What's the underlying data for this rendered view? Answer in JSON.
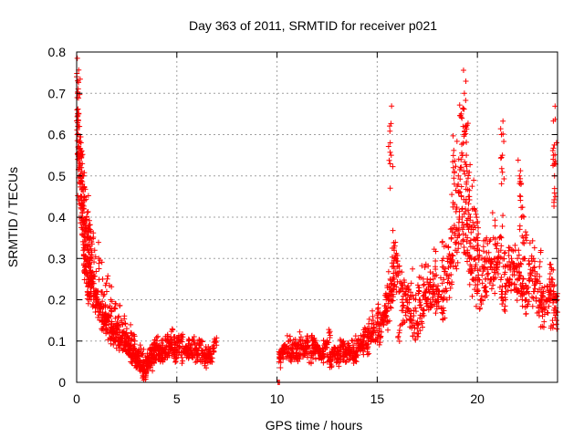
{
  "chart_data": {
    "type": "scatter",
    "title": "Day 363 of 2011, SRMTID for receiver p021",
    "xlabel": "GPS time / hours",
    "ylabel": "SRMTID / TECUs",
    "xlim": [
      0,
      24
    ],
    "ylim": [
      0,
      0.8
    ],
    "xticks": [
      0,
      5,
      10,
      15,
      20
    ],
    "xtick_labels": [
      "0",
      "5",
      "10",
      "15",
      "20"
    ],
    "yticks": [
      0,
      0.1,
      0.2,
      0.3,
      0.4,
      0.5,
      0.6,
      0.7,
      0.8
    ],
    "ytick_labels": [
      "0",
      "0.1",
      "0.2",
      "0.3",
      "0.4",
      "0.5",
      "0.6",
      "0.7",
      "0.8"
    ],
    "grid": true,
    "marker": "plus",
    "color": "#ff0000",
    "series": [
      {
        "name": "SRMTID",
        "x": [
          0.0,
          0.05,
          0.1,
          0.15,
          0.2,
          0.25,
          0.3,
          0.35,
          0.4,
          0.45,
          0.5,
          0.55,
          0.6,
          0.65,
          0.7,
          0.75,
          0.8,
          0.9,
          1.0,
          1.1,
          1.2,
          1.3,
          1.4,
          1.5,
          1.6,
          1.7,
          1.8,
          1.9,
          2.0,
          2.1,
          2.2,
          2.3,
          2.4,
          2.5,
          2.6,
          2.7,
          2.8,
          2.9,
          3.0,
          3.1,
          3.2,
          3.3,
          3.4,
          3.5,
          3.6,
          3.7,
          3.8,
          3.9,
          4.0,
          4.1,
          4.2,
          4.3,
          4.4,
          4.5,
          4.6,
          4.7,
          4.8,
          4.9,
          5.0,
          5.2,
          5.4,
          5.6,
          5.8,
          6.0,
          6.2,
          6.4,
          6.6,
          6.8,
          6.9,
          10.1,
          10.3,
          10.5,
          10.7,
          10.9,
          11.1,
          11.3,
          11.5,
          11.7,
          11.9,
          12.1,
          12.3,
          12.5,
          12.7,
          12.9,
          13.1,
          13.3,
          13.5,
          13.7,
          13.9,
          14.1,
          14.3,
          14.5,
          14.7,
          14.9,
          15.1,
          15.3,
          15.5,
          15.6,
          15.7,
          15.8,
          15.9,
          16.0,
          16.2,
          16.4,
          16.6,
          16.8,
          17.0,
          17.2,
          17.4,
          17.6,
          17.8,
          18.0,
          18.2,
          18.4,
          18.6,
          18.8,
          19.0,
          19.1,
          19.2,
          19.3,
          19.4,
          19.5,
          19.6,
          19.7,
          19.8,
          19.9,
          20.0,
          20.2,
          20.4,
          20.6,
          20.8,
          21.0,
          21.2,
          21.4,
          21.6,
          21.8,
          22.0,
          22.2,
          22.4,
          22.6,
          22.8,
          23.0,
          23.2,
          23.4,
          23.6,
          23.8,
          23.9,
          0.05,
          0.1,
          0.2,
          0.3,
          0.4,
          0.5,
          0.6,
          0.7,
          0.9,
          1.1,
          1.3,
          1.5,
          1.7,
          1.9,
          2.1,
          2.3,
          2.5,
          2.7,
          2.9,
          3.1,
          3.3,
          3.5,
          3.7,
          3.9,
          4.1,
          4.3,
          4.5,
          4.7,
          4.9,
          5.1,
          5.3,
          5.5,
          5.7,
          5.9,
          6.1,
          6.3,
          6.5,
          6.7,
          10.2,
          10.4,
          10.6,
          10.8,
          11.0,
          11.2,
          11.4,
          11.6,
          11.8,
          12.0,
          12.2,
          12.4,
          12.6,
          12.8,
          13.0,
          13.2,
          13.4,
          13.6,
          13.8,
          14.0,
          14.2,
          14.4,
          14.6,
          14.8,
          15.0,
          15.2,
          15.4,
          15.7,
          16.1,
          16.3,
          16.5,
          16.7,
          16.9,
          17.1,
          17.3,
          17.5,
          17.7,
          17.9,
          18.1,
          18.3,
          18.5,
          18.7,
          18.9,
          19.05,
          19.15,
          19.25,
          19.35,
          19.45,
          19.55,
          19.65,
          19.75,
          19.85,
          19.95,
          20.1,
          20.3,
          20.5,
          20.7,
          20.9,
          21.1,
          21.3,
          21.5,
          21.7,
          21.9,
          22.1,
          22.3,
          22.5,
          22.7,
          22.9,
          23.1,
          23.3,
          23.5,
          23.7,
          23.85,
          23.95,
          0.02,
          0.08,
          0.12,
          0.18,
          0.22,
          0.28,
          0.33,
          0.38,
          0.42,
          0.48,
          0.52,
          0.58,
          0.62,
          0.68,
          0.72,
          0.85,
          0.95,
          1.05,
          1.15,
          1.25,
          1.35,
          1.45,
          1.55,
          1.65,
          1.75,
          1.85,
          1.95,
          2.05,
          2.15,
          2.25,
          2.35,
          2.45,
          2.55,
          2.65,
          2.75,
          2.85,
          2.95,
          3.05,
          3.15,
          3.25,
          3.35,
          3.45,
          3.55,
          3.65,
          3.75,
          3.85,
          3.95,
          4.05,
          4.25,
          4.45,
          4.65,
          4.85,
          5.05,
          5.25,
          5.45,
          5.65,
          5.85,
          6.05,
          6.25,
          6.45,
          6.65,
          6.85,
          10.15,
          10.35,
          10.55,
          10.75,
          10.95,
          11.15,
          11.35,
          11.55,
          11.75,
          11.95,
          12.15,
          12.35,
          12.55,
          12.75,
          12.95,
          13.15,
          13.35,
          13.55,
          13.75,
          13.95,
          14.15,
          14.35,
          14.55,
          14.75,
          14.95,
          15.15,
          15.35,
          15.45,
          15.55,
          15.65,
          15.75,
          15.85,
          15.95,
          16.05,
          16.25,
          16.45,
          16.65,
          16.85,
          17.05,
          17.25,
          17.45,
          17.65,
          17.85,
          18.05,
          18.25,
          18.45,
          18.65,
          18.85,
          18.95,
          19.1,
          19.3,
          19.5,
          19.7,
          19.9,
          20.05,
          20.25,
          20.45,
          20.65,
          20.85,
          21.05,
          21.25,
          21.45,
          21.65,
          21.85,
          22.05,
          22.25,
          22.45,
          22.65,
          22.85,
          23.05,
          23.25,
          23.45,
          23.65,
          23.75,
          23.9,
          23.98,
          0.03,
          0.13,
          0.23,
          0.43,
          0.63,
          1.0,
          1.4,
          1.8,
          2.2,
          2.6,
          3.0,
          3.4,
          3.8,
          4.2,
          4.6,
          5.0,
          5.5,
          6.0,
          6.5,
          10.25,
          10.65,
          11.05,
          11.45,
          11.85,
          12.25,
          12.65,
          13.05,
          13.45,
          13.85,
          14.25,
          14.65,
          15.05,
          15.45,
          15.85,
          16.3,
          16.7,
          17.1,
          17.5,
          17.9,
          18.3,
          18.7,
          19.2,
          19.6,
          20.0,
          20.4,
          20.8,
          21.2,
          21.6,
          22.0,
          22.4,
          22.8,
          23.2,
          23.6,
          0.07,
          0.17,
          0.27,
          0.37,
          0.47,
          0.57,
          0.67,
          0.77,
          10.05,
          10.1,
          10.12,
          21.2,
          21.25,
          22.1,
          22.15,
          22.2,
          22.3,
          19.35,
          19.4,
          19.45,
          15.65,
          15.7,
          18.8,
          18.85,
          23.8,
          23.85,
          23.9,
          23.95
        ],
        "y": [
          0.74,
          0.73,
          0.65,
          0.55,
          0.5,
          0.45,
          0.43,
          0.42,
          0.38,
          0.35,
          0.33,
          0.3,
          0.28,
          0.27,
          0.25,
          0.26,
          0.24,
          0.22,
          0.2,
          0.18,
          0.19,
          0.17,
          0.16,
          0.15,
          0.14,
          0.16,
          0.13,
          0.12,
          0.14,
          0.11,
          0.1,
          0.12,
          0.09,
          0.11,
          0.08,
          0.09,
          0.07,
          0.08,
          0.06,
          0.05,
          0.04,
          0.03,
          0.05,
          0.04,
          0.06,
          0.07,
          0.08,
          0.09,
          0.1,
          0.08,
          0.07,
          0.06,
          0.08,
          0.1,
          0.09,
          0.11,
          0.08,
          0.07,
          0.09,
          0.1,
          0.08,
          0.07,
          0.06,
          0.08,
          0.09,
          0.07,
          0.06,
          0.08,
          0.1,
          0.05,
          0.07,
          0.08,
          0.06,
          0.09,
          0.07,
          0.08,
          0.1,
          0.06,
          0.09,
          0.08,
          0.07,
          0.1,
          0.06,
          0.08,
          0.07,
          0.09,
          0.06,
          0.08,
          0.07,
          0.09,
          0.1,
          0.08,
          0.11,
          0.12,
          0.13,
          0.14,
          0.15,
          0.2,
          0.22,
          0.25,
          0.3,
          0.28,
          0.24,
          0.22,
          0.2,
          0.15,
          0.13,
          0.18,
          0.2,
          0.22,
          0.25,
          0.2,
          0.18,
          0.22,
          0.24,
          0.28,
          0.35,
          0.4,
          0.45,
          0.38,
          0.42,
          0.35,
          0.3,
          0.28,
          0.25,
          0.3,
          0.22,
          0.2,
          0.25,
          0.3,
          0.35,
          0.28,
          0.22,
          0.2,
          0.25,
          0.28,
          0.3,
          0.22,
          0.2,
          0.25,
          0.3,
          0.22,
          0.2,
          0.18,
          0.25,
          0.22,
          0.18,
          0.7,
          0.62,
          0.58,
          0.5,
          0.45,
          0.4,
          0.38,
          0.35,
          0.32,
          0.3,
          0.25,
          0.22,
          0.2,
          0.18,
          0.16,
          0.14,
          0.13,
          0.12,
          0.1,
          0.08,
          0.07,
          0.05,
          0.04,
          0.06,
          0.07,
          0.09,
          0.1,
          0.08,
          0.09,
          0.1,
          0.11,
          0.08,
          0.07,
          0.08,
          0.09,
          0.07,
          0.06,
          0.05,
          0.06,
          0.08,
          0.1,
          0.07,
          0.09,
          0.11,
          0.08,
          0.07,
          0.1,
          0.09,
          0.06,
          0.08,
          0.12,
          0.07,
          0.06,
          0.1,
          0.08,
          0.07,
          0.09,
          0.1,
          0.08,
          0.12,
          0.13,
          0.15,
          0.1,
          0.14,
          0.16,
          0.18,
          0.12,
          0.15,
          0.2,
          0.24,
          0.18,
          0.22,
          0.25,
          0.2,
          0.23,
          0.28,
          0.22,
          0.18,
          0.3,
          0.35,
          0.32,
          0.5,
          0.52,
          0.55,
          0.6,
          0.48,
          0.45,
          0.4,
          0.42,
          0.38,
          0.35,
          0.32,
          0.28,
          0.3,
          0.25,
          0.3,
          0.35,
          0.28,
          0.25,
          0.3,
          0.32,
          0.28,
          0.25,
          0.22,
          0.3,
          0.25,
          0.28,
          0.22,
          0.2,
          0.25,
          0.18,
          0.15,
          0.66,
          0.6,
          0.52,
          0.48,
          0.4,
          0.36,
          0.32,
          0.3,
          0.28,
          0.27,
          0.26,
          0.25,
          0.24,
          0.23,
          0.22,
          0.21,
          0.18,
          0.19,
          0.17,
          0.15,
          0.14,
          0.13,
          0.15,
          0.12,
          0.11,
          0.13,
          0.1,
          0.12,
          0.09,
          0.1,
          0.08,
          0.09,
          0.07,
          0.08,
          0.06,
          0.07,
          0.05,
          0.06,
          0.04,
          0.03,
          0.02,
          0.02,
          0.04,
          0.05,
          0.07,
          0.08,
          0.09,
          0.08,
          0.06,
          0.07,
          0.09,
          0.11,
          0.08,
          0.06,
          0.07,
          0.09,
          0.1,
          0.07,
          0.06,
          0.05,
          0.07,
          0.09,
          0.06,
          0.08,
          0.07,
          0.09,
          0.06,
          0.08,
          0.07,
          0.1,
          0.09,
          0.08,
          0.07,
          0.09,
          0.06,
          0.08,
          0.07,
          0.05,
          0.06,
          0.08,
          0.07,
          0.06,
          0.09,
          0.08,
          0.1,
          0.12,
          0.14,
          0.11,
          0.15,
          0.18,
          0.2,
          0.25,
          0.28,
          0.32,
          0.3,
          0.26,
          0.2,
          0.18,
          0.15,
          0.12,
          0.14,
          0.16,
          0.2,
          0.18,
          0.22,
          0.2,
          0.24,
          0.26,
          0.3,
          0.38,
          0.42,
          0.4,
          0.36,
          0.32,
          0.3,
          0.28,
          0.26,
          0.24,
          0.22,
          0.28,
          0.25,
          0.3,
          0.22,
          0.24,
          0.28,
          0.26,
          0.22,
          0.24,
          0.2,
          0.26,
          0.22,
          0.18,
          0.16,
          0.2,
          0.22,
          0.15,
          0.18,
          0.2,
          0.6,
          0.5,
          0.42,
          0.3,
          0.2,
          0.2,
          0.15,
          0.12,
          0.1,
          0.08,
          0.05,
          0.03,
          0.06,
          0.08,
          0.07,
          0.06,
          0.07,
          0.06,
          0.08,
          0.08,
          0.07,
          0.06,
          0.08,
          0.07,
          0.06,
          0.05,
          0.07,
          0.08,
          0.06,
          0.1,
          0.12,
          0.18,
          0.2,
          0.25,
          0.22,
          0.15,
          0.2,
          0.25,
          0.2,
          0.3,
          0.35,
          0.65,
          0.45,
          0.35,
          0.3,
          0.25,
          0.35,
          0.28,
          0.25,
          0.35,
          0.22,
          0.2,
          0.2,
          0.57,
          0.52,
          0.48,
          0.42,
          0.38,
          0.35,
          0.33,
          0.3,
          0.0,
          0.0,
          0.0,
          0.6,
          0.55,
          0.5,
          0.45,
          0.4,
          0.35,
          0.7,
          0.62,
          0.55,
          0.58,
          0.55,
          0.52,
          0.48,
          0.55,
          0.5,
          0.45,
          0.58
        ]
      }
    ]
  }
}
